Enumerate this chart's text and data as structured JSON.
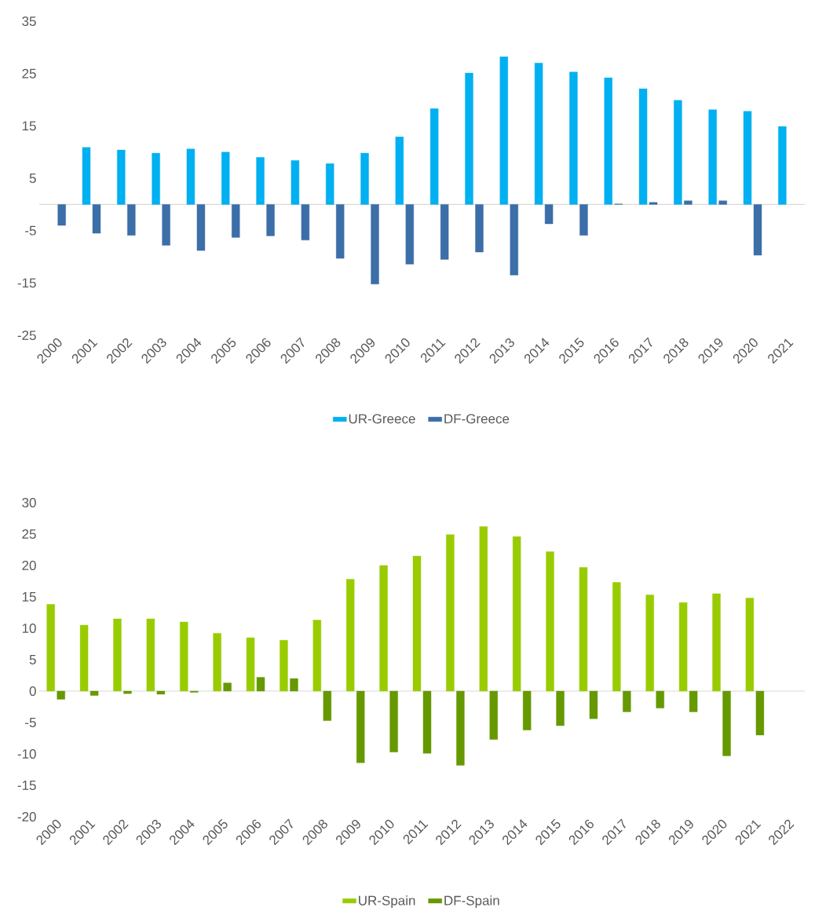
{
  "chart_data": [
    {
      "type": "bar",
      "categories": [
        "2000",
        "2001",
        "2002",
        "2003",
        "2004",
        "2005",
        "2006",
        "2007",
        "2008",
        "2009",
        "2010",
        "2011",
        "2012",
        "2013",
        "2014",
        "2015",
        "2016",
        "2017",
        "2018",
        "2019",
        "2020",
        "2021"
      ],
      "series": [
        {
          "name": "UR-Greece",
          "color": "#00b0f0",
          "values": [
            null,
            10.9,
            10.4,
            9.8,
            10.6,
            10.0,
            9.0,
            8.4,
            7.8,
            9.8,
            12.9,
            18.3,
            25.1,
            28.2,
            27.0,
            25.3,
            24.2,
            22.1,
            19.9,
            18.1,
            17.8,
            14.9
          ]
        },
        {
          "name": "DF-Greece",
          "color": "#3c6ea8",
          "values": [
            -4.0,
            -5.5,
            -5.9,
            -7.8,
            -8.8,
            -6.3,
            -6.0,
            -6.8,
            -10.3,
            -15.2,
            -11.4,
            -10.5,
            -9.1,
            -13.5,
            -3.7,
            -5.9,
            0.1,
            0.4,
            0.7,
            0.7,
            -9.7,
            null
          ]
        }
      ],
      "ylim": [
        -25,
        35
      ],
      "yticks": [
        -25,
        -15,
        -5,
        5,
        15,
        25,
        35
      ],
      "legend": "bottom"
    },
    {
      "type": "bar",
      "categories": [
        "2000",
        "2001",
        "2002",
        "2003",
        "2004",
        "2005",
        "2006",
        "2007",
        "2008",
        "2009",
        "2010",
        "2011",
        "2012",
        "2013",
        "2014",
        "2015",
        "2016",
        "2017",
        "2018",
        "2019",
        "2020",
        "2021",
        "2022"
      ],
      "series": [
        {
          "name": "UR-Spain",
          "color": "#99cc00",
          "values": [
            13.8,
            10.5,
            11.5,
            11.5,
            11.0,
            9.2,
            8.5,
            8.1,
            11.3,
            17.8,
            20.0,
            21.5,
            24.9,
            26.2,
            24.6,
            22.2,
            19.7,
            17.3,
            15.3,
            14.1,
            15.5,
            14.8,
            null
          ]
        },
        {
          "name": "DF-Spain",
          "color": "#669900",
          "values": [
            -1.3,
            -0.7,
            -0.4,
            -0.5,
            -0.2,
            1.3,
            2.2,
            2.0,
            -4.7,
            -11.4,
            -9.7,
            -9.9,
            -11.8,
            -7.7,
            -6.2,
            -5.5,
            -4.4,
            -3.3,
            -2.7,
            -3.3,
            -10.3,
            -7.0,
            null
          ]
        }
      ],
      "ylim": [
        -20,
        30
      ],
      "yticks": [
        -20,
        -15,
        -10,
        -5,
        0,
        5,
        10,
        15,
        20,
        25,
        30
      ],
      "legend": "bottom"
    }
  ]
}
